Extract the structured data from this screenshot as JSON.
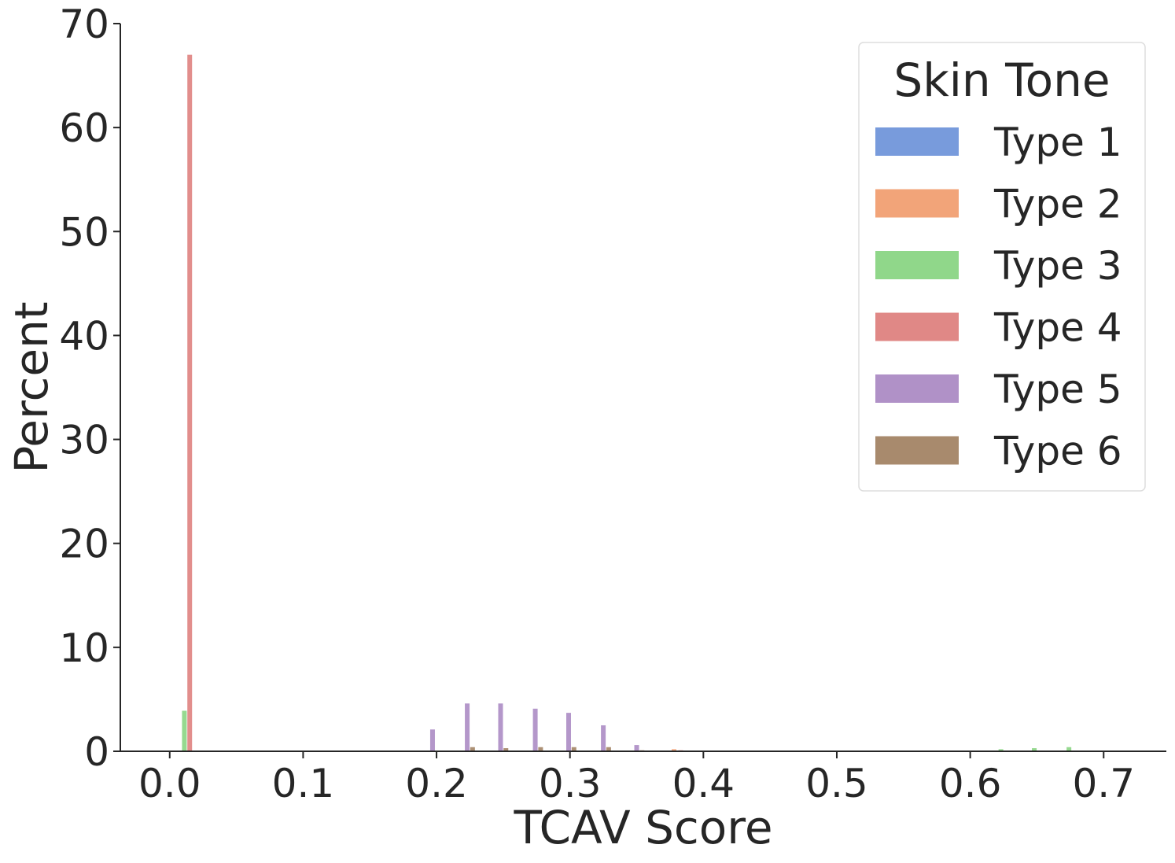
{
  "chart_data": {
    "type": "bar",
    "title": "",
    "xlabel": "TCAV Score",
    "ylabel": "Percent",
    "xlim": [
      -0.037,
      0.747
    ],
    "ylim": [
      0,
      70
    ],
    "xticks": [
      "0.0",
      "0.1",
      "0.2",
      "0.3",
      "0.4",
      "0.5",
      "0.6",
      "0.7"
    ],
    "yticks": [
      "0",
      "10",
      "20",
      "30",
      "40",
      "50",
      "60",
      "70"
    ],
    "grid": false,
    "legend": {
      "title": "Skin Tone",
      "position": "top-right"
    },
    "series": [
      {
        "name": "Type 1",
        "color": "#789bdc",
        "points": []
      },
      {
        "name": "Type 2",
        "color": "#f2a479",
        "points": [
          {
            "x": 0.378,
            "y": 0.2
          }
        ]
      },
      {
        "name": "Type 3",
        "color": "#90d78a",
        "points": [
          {
            "x": 0.011,
            "y": 3.9
          },
          {
            "x": 0.623,
            "y": 0.2
          },
          {
            "x": 0.648,
            "y": 0.3
          },
          {
            "x": 0.674,
            "y": 0.4
          }
        ]
      },
      {
        "name": "Type 4",
        "color": "#e08886",
        "points": [
          {
            "x": 0.015,
            "y": 67.0
          },
          {
            "x": 0.383,
            "y": 0.1
          }
        ]
      },
      {
        "name": "Type 5",
        "color": "#b091c7",
        "points": [
          {
            "x": 0.197,
            "y": 2.1
          },
          {
            "x": 0.223,
            "y": 4.6
          },
          {
            "x": 0.248,
            "y": 4.6
          },
          {
            "x": 0.274,
            "y": 4.1
          },
          {
            "x": 0.299,
            "y": 3.7
          },
          {
            "x": 0.325,
            "y": 2.5
          },
          {
            "x": 0.35,
            "y": 0.6
          }
        ]
      },
      {
        "name": "Type 6",
        "color": "#a88a6d",
        "points": [
          {
            "x": 0.227,
            "y": 0.4
          },
          {
            "x": 0.252,
            "y": 0.3
          },
          {
            "x": 0.278,
            "y": 0.4
          },
          {
            "x": 0.303,
            "y": 0.4
          },
          {
            "x": 0.329,
            "y": 0.4
          },
          {
            "x": 0.354,
            "y": 0.1
          }
        ]
      }
    ]
  }
}
